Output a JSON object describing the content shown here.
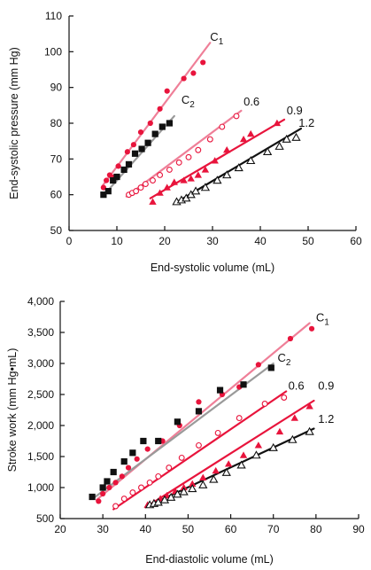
{
  "colors": {
    "c1": "#e8143c",
    "c1_line": "#ef7f98",
    "c2": "#111111",
    "c2_line": "#9a9a9a",
    "p06": "#e8143c",
    "p09": "#e8143c",
    "p12": "#111111"
  },
  "chart_data": [
    {
      "type": "scatter",
      "title": "",
      "xlabel": "End-systolic volume (mL)",
      "ylabel": "End-systolic pressure (mm Hg)",
      "xlim": [
        0,
        60
      ],
      "ylim": [
        50,
        110
      ],
      "xticks": [
        "0",
        "10",
        "20",
        "30",
        "40",
        "50",
        "60"
      ],
      "yticks": [
        "50",
        "60",
        "70",
        "80",
        "90",
        "100",
        "110"
      ],
      "grid": false,
      "series": [
        {
          "name": "C1",
          "marker": "filled-circle",
          "color": "#e8143c",
          "line_color": "#ef7f98",
          "x": [
            7.2,
            7.8,
            8.5,
            9.5,
            10.3,
            12.2,
            13.5,
            15,
            17,
            19,
            20.5,
            24,
            26,
            28
          ],
          "y": [
            62,
            64,
            65.5,
            65,
            68,
            72,
            74,
            77.5,
            80,
            84,
            89,
            92.5,
            94,
            97
          ],
          "fit": [
            [
              7,
              62.5
            ],
            [
              29.5,
              102.5
            ]
          ],
          "label_at": [
            29.5,
            103
          ]
        },
        {
          "name": "C2",
          "marker": "filled-square",
          "color": "#111111",
          "line_color": "#9a9a9a",
          "x": [
            7.2,
            8.2,
            9.2,
            10,
            11.5,
            12.5,
            13.8,
            15.2,
            16.5,
            18,
            19.5,
            21
          ],
          "y": [
            60,
            61,
            64,
            65,
            67,
            68.5,
            71.5,
            72.8,
            74.5,
            77,
            79,
            80
          ],
          "fit": [
            [
              7,
              59.5
            ],
            [
              22,
              82
            ]
          ],
          "label_at": [
            23.5,
            85.5
          ]
        },
        {
          "name": "0.6",
          "marker": "open-circle",
          "color": "#e8143c",
          "line_color": "#ef7f98",
          "x": [
            12.5,
            13.2,
            14,
            15,
            16,
            17.5,
            19,
            21,
            23,
            25,
            27,
            29.5,
            32,
            35
          ],
          "y": [
            60,
            60.5,
            61,
            62,
            63,
            64,
            65.5,
            67,
            69,
            70.5,
            72.5,
            75.5,
            79,
            82
          ],
          "fit": [
            [
              12,
              59.5
            ],
            [
              36,
              83.5
            ]
          ],
          "label_at": [
            36.5,
            85
          ]
        },
        {
          "name": "0.9",
          "marker": "filled-triangle",
          "color": "#e8143c",
          "line_color": "#e8143c",
          "x": [
            17.5,
            19,
            20.5,
            22,
            24,
            25.5,
            27,
            28.5,
            30.5,
            33,
            36.5,
            38,
            43.5
          ],
          "y": [
            58,
            60.5,
            62,
            63.5,
            64,
            64.5,
            65.5,
            67,
            69.5,
            72.5,
            75.5,
            77,
            80
          ],
          "fit": [
            [
              17,
              59
            ],
            [
              45,
              81
            ]
          ],
          "label_at": [
            45.5,
            82.5
          ]
        },
        {
          "name": "1.2",
          "marker": "open-triangle",
          "color": "#111111",
          "line_color": "#111111",
          "x": [
            22.5,
            23.5,
            24.5,
            25.5,
            26.5,
            28.5,
            31,
            33,
            35.5,
            38,
            41.5,
            44,
            45.5,
            47.5
          ],
          "y": [
            58,
            58.5,
            59,
            60,
            61,
            62,
            64,
            65.5,
            67.5,
            69.5,
            72,
            73.5,
            75.5,
            76
          ],
          "fit": [
            [
              22,
              57.5
            ],
            [
              48.5,
              78.5
            ]
          ],
          "label_at": [
            48,
            79
          ]
        }
      ]
    },
    {
      "type": "scatter",
      "title": "",
      "xlabel": "End-diastolic volume (mL)",
      "ylabel": "Stroke work (mm Hg•mL)",
      "xlim": [
        20,
        90
      ],
      "ylim": [
        500,
        4000
      ],
      "xticks": [
        "20",
        "30",
        "40",
        "50",
        "60",
        "70",
        "80",
        "90"
      ],
      "yticks": [
        "500",
        "1,000",
        "1,500",
        "2,000",
        "2,500",
        "3,000",
        "3,500",
        "4,000"
      ],
      "grid": false,
      "series": [
        {
          "name": "C1",
          "marker": "filled-circle",
          "color": "#e8143c",
          "line_color": "#ef7f98",
          "x": [
            29,
            30,
            31.5,
            33,
            34.5,
            36,
            38,
            40.5,
            44,
            48,
            52.5,
            58,
            62,
            66.5,
            74,
            79
          ],
          "y": [
            780,
            900,
            1000,
            1080,
            1180,
            1320,
            1460,
            1620,
            1750,
            2000,
            2380,
            2500,
            2620,
            2980,
            3400,
            3560
          ],
          "fit": [
            [
              28.5,
              800
            ],
            [
              78.5,
              3650
            ]
          ],
          "label_at": [
            80,
            3680
          ]
        },
        {
          "name": "C2",
          "marker": "filled-square",
          "color": "#111111",
          "line_color": "#9a9a9a",
          "x": [
            27.5,
            30,
            31,
            32.5,
            35,
            37,
            39.5,
            43,
            47.5,
            52.5,
            57.5,
            63,
            69.5
          ],
          "y": [
            850,
            1000,
            1100,
            1250,
            1420,
            1560,
            1750,
            1750,
            2060,
            2230,
            2570,
            2660,
            2930
          ],
          "fit": [
            [
              28,
              840
            ],
            [
              70,
              3000
            ]
          ],
          "label_at": [
            71,
            3030
          ]
        },
        {
          "name": "0.6",
          "marker": "open-circle",
          "color": "#e8143c",
          "line_color": "#e8143c",
          "x": [
            33,
            35,
            37,
            39,
            41,
            43,
            45.5,
            48.5,
            52.5,
            57,
            62,
            68,
            72.5
          ],
          "y": [
            700,
            820,
            920,
            1000,
            1080,
            1180,
            1320,
            1480,
            1680,
            1880,
            2120,
            2350,
            2450
          ],
          "fit": [
            [
              32.5,
              650
            ],
            [
              73,
              2550
            ]
          ],
          "label_at": [
            73.5,
            2580
          ]
        },
        {
          "name": "0.9",
          "marker": "filled-triangle",
          "color": "#e8143c",
          "line_color": "#e8143c",
          "x": [
            40.5,
            42,
            43.5,
            45,
            47,
            49,
            51,
            53.5,
            56.5,
            59.5,
            63,
            66.5,
            71.5,
            75,
            78.5
          ],
          "y": [
            720,
            760,
            820,
            870,
            940,
            1000,
            1060,
            1160,
            1270,
            1380,
            1520,
            1680,
            1900,
            2120,
            2310
          ],
          "fit": [
            [
              40,
              680
            ],
            [
              79.5,
              2400
            ]
          ],
          "label_at": [
            80.5,
            2580
          ]
        },
        {
          "name": "1.2",
          "marker": "open-triangle",
          "color": "#111111",
          "line_color": "#111111",
          "x": [
            41,
            42,
            43,
            44.5,
            46,
            47.5,
            49,
            51,
            53.5,
            56,
            59,
            62.5,
            66,
            70,
            74.5,
            78.5
          ],
          "y": [
            720,
            740,
            760,
            800,
            840,
            890,
            930,
            980,
            1040,
            1130,
            1240,
            1360,
            1520,
            1640,
            1770,
            1900
          ],
          "fit": [
            [
              40.5,
              700
            ],
            [
              79.5,
              1950
            ]
          ],
          "label_at": [
            80.5,
            2040
          ]
        }
      ]
    }
  ]
}
